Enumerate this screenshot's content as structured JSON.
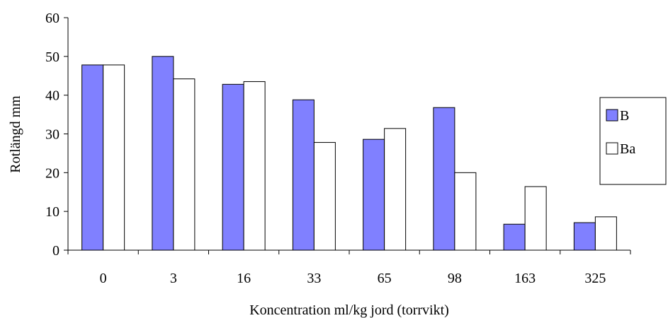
{
  "chart_data": {
    "type": "bar",
    "title": "",
    "xlabel": "Koncentration ml/kg jord (torrvikt)",
    "ylabel": "Rotlängd mm",
    "categories": [
      "0",
      "3",
      "16",
      "33",
      "65",
      "98",
      "163",
      "325"
    ],
    "series": [
      {
        "name": "B",
        "values": [
          47.8,
          50.0,
          42.8,
          38.8,
          28.6,
          36.8,
          6.7,
          7.1
        ]
      },
      {
        "name": "Ba",
        "values": [
          47.8,
          44.2,
          43.5,
          27.8,
          31.4,
          20.0,
          16.4,
          8.6
        ]
      }
    ],
    "ylim": [
      0,
      60
    ],
    "yticks": [
      "0",
      "10",
      "20",
      "30",
      "40",
      "50",
      "60"
    ],
    "grid": false,
    "legend_position": "right",
    "colors": {
      "B": "#8080ff",
      "Ba": "#ffffff",
      "stroke": "#000000"
    }
  }
}
